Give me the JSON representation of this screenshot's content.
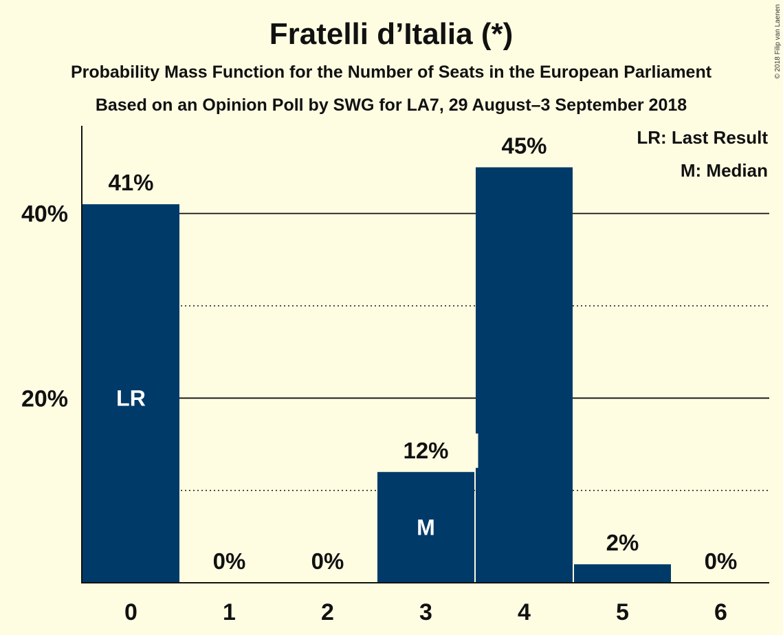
{
  "colors": {
    "background": "#fefde2",
    "bar": "#003a69",
    "text": "#111111",
    "marker_text": "#ffffff"
  },
  "copyright": "© 2018 Filip van Laenen",
  "chart_data": {
    "type": "bar",
    "title": "Fratelli d’Italia (*)",
    "subtitle": "Probability Mass Function for the Number of Seats in the European Parliament",
    "subtitle2": "Based on an Opinion Poll by SWG for LA7, 29 August–3 September 2018",
    "xlabel": "",
    "ylabel": "",
    "categories": [
      "0",
      "1",
      "2",
      "3",
      "4",
      "5",
      "6"
    ],
    "values": [
      41,
      0,
      0,
      12,
      45,
      2,
      0
    ],
    "value_labels": [
      "41%",
      "0%",
      "0%",
      "12%",
      "45%",
      "2%",
      "0%"
    ],
    "markers": [
      {
        "category": "0",
        "label": "LR"
      },
      {
        "category": "3",
        "label": "M"
      }
    ],
    "ylim": [
      0,
      49.5
    ],
    "yticks": [
      {
        "value": 20,
        "label": "20%"
      },
      {
        "value": 40,
        "label": "40%"
      }
    ],
    "solid_gridlines": [
      20,
      40
    ],
    "dotted_gridlines": [
      10,
      30
    ],
    "legend": {
      "position": "top-right",
      "entries": [
        "LR: Last Result",
        "M: Median"
      ]
    }
  }
}
